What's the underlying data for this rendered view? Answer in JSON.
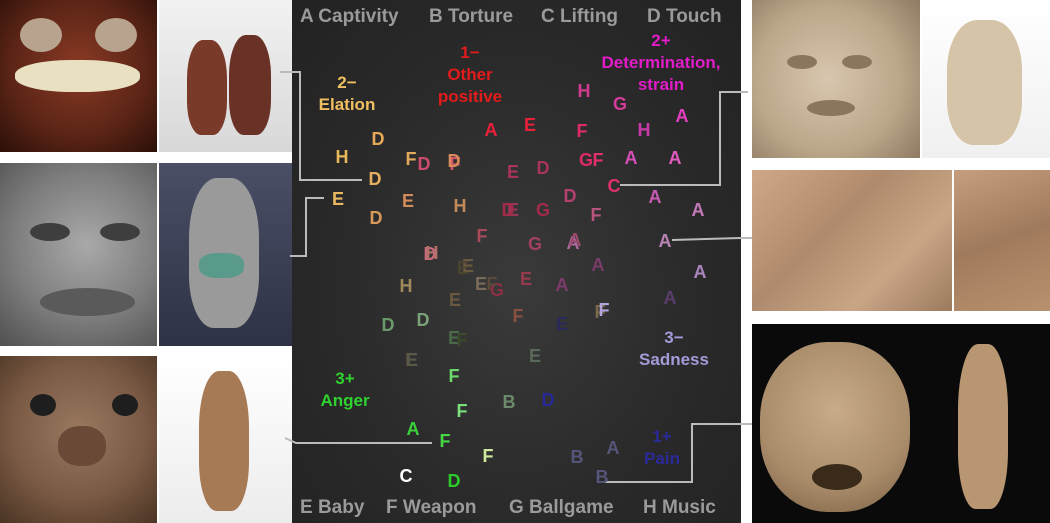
{
  "headers_top": [
    "A Captivity",
    "B Torture",
    "C Lifting",
    "D Touch"
  ],
  "headers_bottom": [
    "E Baby",
    "F Weapon",
    "G Ballgame",
    "H Music"
  ],
  "clusters": [
    {
      "line1": "2−",
      "line2": "Elation",
      "color": "#f0c060"
    },
    {
      "line1": "1−",
      "line2": "Other positive",
      "color": "#e21b1b"
    },
    {
      "line1": "2+",
      "line2": "Determination, strain",
      "color": "#e11cc8"
    },
    {
      "line1": "3−",
      "line2": "Sadness",
      "color": "#a29cd9"
    },
    {
      "line1": "3+",
      "line2": "Anger",
      "color": "#2fd12f"
    },
    {
      "line1": "1+",
      "line2": "Pain",
      "color": "#2a2a9a"
    }
  ],
  "points": [
    {
      "t": "A",
      "c": "#e8203a"
    },
    {
      "t": "E",
      "c": "#e8203a"
    },
    {
      "t": "H",
      "c": "#d13a8f"
    },
    {
      "t": "G",
      "c": "#d63a9a"
    },
    {
      "t": "A",
      "c": "#e43ec0"
    },
    {
      "t": "F",
      "c": "#e02a6a"
    },
    {
      "t": "G",
      "c": "#e02a6a"
    },
    {
      "t": "H",
      "c": "#c93aa8"
    },
    {
      "t": "A",
      "c": "#e15abf"
    },
    {
      "t": "A",
      "c": "#d54fb6"
    },
    {
      "t": "F",
      "c": "#e0306e"
    },
    {
      "t": "C",
      "c": "#e0306e"
    },
    {
      "t": "A",
      "c": "#c85ab2"
    },
    {
      "t": "A",
      "c": "#c47ab9"
    },
    {
      "t": "A",
      "c": "#b983b5"
    },
    {
      "t": "A",
      "c": "#ab85bd"
    },
    {
      "t": "F",
      "c": "#b8557f"
    },
    {
      "t": "A",
      "c": "#b06aa0"
    },
    {
      "t": "D",
      "c": "#b5406f"
    },
    {
      "t": "F",
      "c": "#d2536e"
    },
    {
      "t": "D",
      "c": "#cc4b6d"
    },
    {
      "t": "E",
      "c": "#a8345a"
    },
    {
      "t": "D",
      "c": "#a8345a"
    },
    {
      "t": "E",
      "c": "#9d3559"
    },
    {
      "t": "D",
      "c": "#a42a4a"
    },
    {
      "t": "G",
      "c": "#a42a4a"
    },
    {
      "t": "F",
      "c": "#a84a5a"
    },
    {
      "t": "G",
      "c": "#a44060"
    },
    {
      "t": "A",
      "c": "#9a4a6c"
    },
    {
      "t": "A",
      "c": "#7a3a6a"
    },
    {
      "t": "A",
      "c": "#7b3a6b"
    },
    {
      "t": "A",
      "c": "#5a3d6a"
    },
    {
      "t": "E",
      "c": "#9a3a4e"
    },
    {
      "t": "G",
      "c": "#8b2f44"
    },
    {
      "t": "F",
      "c": "#8a5040"
    },
    {
      "t": "E",
      "c": "#6a5a40"
    },
    {
      "t": "F",
      "c": "#5c4a3a"
    },
    {
      "t": "E",
      "c": "#6a5a40"
    },
    {
      "t": "E",
      "c": "#4a6a4a"
    },
    {
      "t": "F",
      "c": "#3a4a2a"
    },
    {
      "t": "E",
      "c": "#4b4530"
    },
    {
      "t": "E",
      "c": "#5a4a3a"
    },
    {
      "t": "E",
      "c": "#5a6a5a"
    },
    {
      "t": "F",
      "c": "#7a6a4a"
    },
    {
      "t": "B",
      "c": "#6a8a6a"
    },
    {
      "t": "D",
      "c": "#28289a"
    },
    {
      "t": "E",
      "c": "#2a2a5a"
    },
    {
      "t": "F",
      "c": "#b4a4e0"
    },
    {
      "t": "D",
      "c": "#e6a95a"
    },
    {
      "t": "H",
      "c": "#e6b85a"
    },
    {
      "t": "F",
      "c": "#e4a85a"
    },
    {
      "t": "D",
      "c": "#e6b060"
    },
    {
      "t": "E",
      "c": "#e8b860"
    },
    {
      "t": "D",
      "c": "#d89a5a"
    },
    {
      "t": "E",
      "c": "#d48b5a"
    },
    {
      "t": "D",
      "c": "#d88a5a"
    },
    {
      "t": "H",
      "c": "#c48a5a"
    },
    {
      "t": "D",
      "c": "#c96a7a"
    },
    {
      "t": "H",
      "c": "#b4706a"
    },
    {
      "t": "H",
      "c": "#a08a5a"
    },
    {
      "t": "D",
      "c": "#6a9a6a"
    },
    {
      "t": "D",
      "c": "#7aa07a"
    },
    {
      "t": "E",
      "c": "#5a5a4a"
    },
    {
      "t": "F",
      "c": "#6ad86a"
    },
    {
      "t": "F",
      "c": "#7ae07a"
    },
    {
      "t": "A",
      "c": "#39d239"
    },
    {
      "t": "F",
      "c": "#45d845"
    },
    {
      "t": "F",
      "c": "#cfe8a0"
    },
    {
      "t": "C",
      "c": "#ffffff"
    },
    {
      "t": "D",
      "c": "#2acb2a"
    },
    {
      "t": "B",
      "c": "#55557a"
    },
    {
      "t": "A",
      "c": "#55557a"
    },
    {
      "t": "B",
      "c": "#55557a"
    },
    {
      "t": "E",
      "c": "#7a6a5a"
    }
  ]
}
